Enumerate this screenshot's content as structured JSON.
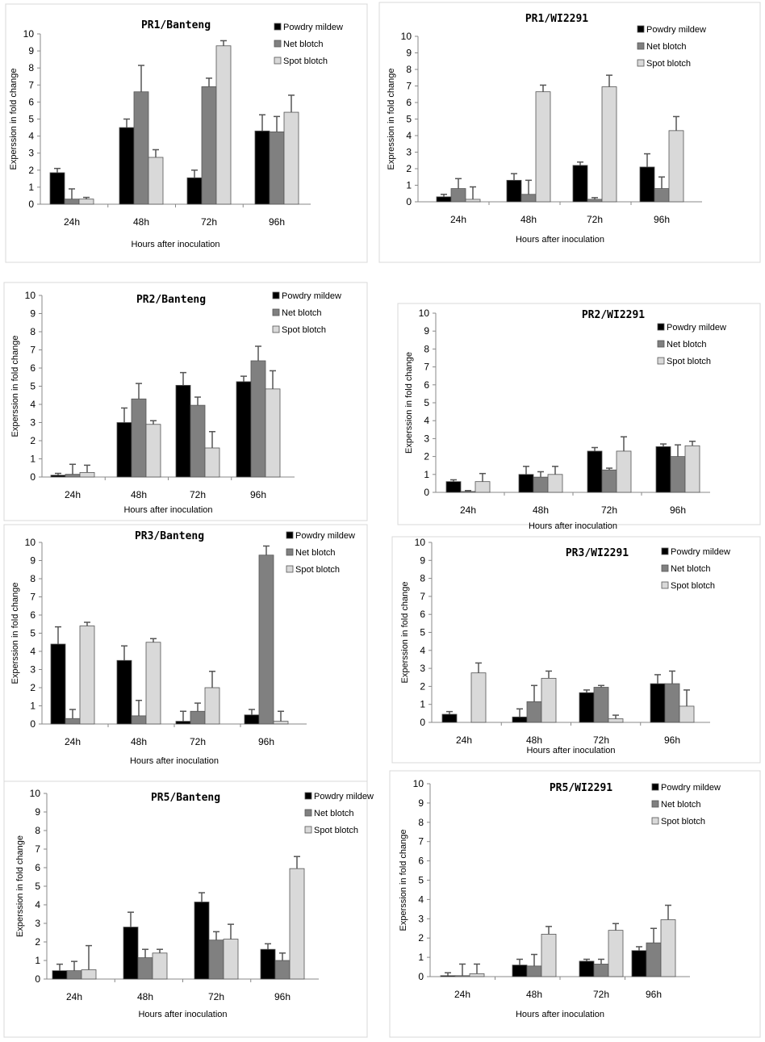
{
  "chart_data": [
    {
      "type": "bar",
      "title": "PR1/Banteng",
      "xlabel": "Hours after inoculation",
      "ylabel": "Experssion in fold change",
      "ylim": [
        0,
        10
      ],
      "yticks": [
        0,
        1,
        2,
        3,
        4,
        5,
        6,
        7,
        8,
        9,
        10
      ],
      "legend": "top-right",
      "categories": [
        "24h",
        "48h",
        "72h",
        "96h"
      ],
      "series": [
        {
          "name": "Powdry mildew",
          "color": "#000000",
          "values": [
            1.85,
            4.5,
            1.55,
            4.3
          ],
          "errors": [
            0.25,
            0.5,
            0.45,
            0.95
          ]
        },
        {
          "name": "Net blotch",
          "color": "#808080",
          "values": [
            0.3,
            6.6,
            6.9,
            4.25
          ],
          "errors": [
            0.6,
            1.55,
            0.5,
            0.9
          ]
        },
        {
          "name": "Spot blotch",
          "color": "#d9d9d9",
          "values": [
            0.3,
            2.75,
            9.3,
            5.4
          ],
          "errors": [
            0.1,
            0.45,
            0.3,
            1.0
          ]
        }
      ]
    },
    {
      "type": "bar",
      "title": "PR1/WI2291",
      "xlabel": "Hours after inoculation",
      "ylabel": "Expression in fold change",
      "ylim": [
        0,
        10
      ],
      "yticks": [
        0,
        1,
        2,
        3,
        4,
        5,
        6,
        7,
        8,
        9,
        10
      ],
      "legend": "top-right",
      "categories": [
        "24h",
        "48h",
        "72h",
        "96h"
      ],
      "series": [
        {
          "name": "Powdry mildew",
          "color": "#000000",
          "values": [
            0.3,
            1.3,
            2.2,
            2.1
          ],
          "errors": [
            0.15,
            0.4,
            0.2,
            0.8
          ]
        },
        {
          "name": "Net blotch",
          "color": "#808080",
          "values": [
            0.8,
            0.45,
            0.15,
            0.8
          ],
          "errors": [
            0.6,
            0.85,
            0.1,
            0.7
          ]
        },
        {
          "name": "Spot blotch",
          "color": "#d9d9d9",
          "values": [
            0.15,
            6.65,
            6.95,
            4.3
          ],
          "errors": [
            0.75,
            0.4,
            0.7,
            0.85
          ]
        }
      ]
    },
    {
      "type": "bar",
      "title": "PR2/Banteng",
      "xlabel": "Hours after inoculation",
      "ylabel": "Experssion in fold change",
      "ylim": [
        0,
        10
      ],
      "yticks": [
        0,
        1,
        2,
        3,
        4,
        5,
        6,
        7,
        8,
        9,
        10
      ],
      "legend": "top-right",
      "categories": [
        "24h",
        "48h",
        "72h",
        "96h"
      ],
      "series": [
        {
          "name": "Powdry mildew",
          "color": "#000000",
          "values": [
            0.1,
            3.0,
            5.05,
            5.25
          ],
          "errors": [
            0.1,
            0.8,
            0.7,
            0.3
          ]
        },
        {
          "name": "Net blotch",
          "color": "#808080",
          "values": [
            0.15,
            4.3,
            3.95,
            6.4
          ],
          "errors": [
            0.55,
            0.85,
            0.45,
            0.8
          ]
        },
        {
          "name": "Spot blotch",
          "color": "#d9d9d9",
          "values": [
            0.25,
            2.9,
            1.6,
            4.85
          ],
          "errors": [
            0.4,
            0.2,
            0.9,
            1.0
          ]
        }
      ]
    },
    {
      "type": "bar",
      "title": "PR2/WI2291",
      "xlabel": "Hours after inoculation",
      "ylabel": "Experssion in fold change",
      "ylim": [
        0,
        10
      ],
      "yticks": [
        0,
        1,
        2,
        3,
        4,
        5,
        6,
        7,
        8,
        9,
        10
      ],
      "legend": "top-right",
      "categories": [
        "24h",
        "48h",
        "72h",
        "96h"
      ],
      "series": [
        {
          "name": "Powdry mildew",
          "color": "#000000",
          "values": [
            0.6,
            1.0,
            2.3,
            2.55
          ],
          "errors": [
            0.1,
            0.45,
            0.2,
            0.15
          ]
        },
        {
          "name": "Net blotch",
          "color": "#808080",
          "values": [
            0.05,
            0.85,
            1.25,
            2.0
          ],
          "errors": [
            0.05,
            0.3,
            0.1,
            0.65
          ]
        },
        {
          "name": "Spot blotch",
          "color": "#d9d9d9",
          "values": [
            0.6,
            1.0,
            2.3,
            2.6
          ],
          "errors": [
            0.45,
            0.45,
            0.8,
            0.25
          ]
        }
      ]
    },
    {
      "type": "bar",
      "title": "PR3/Banteng",
      "xlabel": "Hours after inoculation",
      "ylabel": "Experssion in fold change",
      "ylim": [
        0,
        10
      ],
      "yticks": [
        0,
        1,
        2,
        3,
        4,
        5,
        6,
        7,
        8,
        9,
        10
      ],
      "legend": "top-right",
      "categories": [
        "24h",
        "48h",
        "72h",
        "96h"
      ],
      "series": [
        {
          "name": "Powdry mildew",
          "color": "#000000",
          "values": [
            4.4,
            3.5,
            0.15,
            0.5
          ],
          "errors": [
            0.95,
            0.8,
            0.55,
            0.3
          ]
        },
        {
          "name": "Net blotch",
          "color": "#808080",
          "values": [
            0.3,
            0.45,
            0.7,
            9.3
          ],
          "errors": [
            0.5,
            0.85,
            0.45,
            0.5
          ]
        },
        {
          "name": "Spot blotch",
          "color": "#d9d9d9",
          "values": [
            5.4,
            4.5,
            2.0,
            0.15
          ],
          "errors": [
            0.2,
            0.2,
            0.9,
            0.55
          ]
        }
      ]
    },
    {
      "type": "bar",
      "title": "PR3/WI2291",
      "xlabel": "Hours after inoculation",
      "ylabel": "Experssion in fold change",
      "ylim": [
        0,
        10
      ],
      "yticks": [
        0,
        1,
        2,
        3,
        4,
        5,
        6,
        7,
        8,
        9,
        10
      ],
      "legend": "top-right",
      "categories": [
        "24h",
        "48h",
        "72h",
        "96h"
      ],
      "series": [
        {
          "name": "Powdry mildew",
          "color": "#000000",
          "values": [
            0.45,
            0.3,
            1.65,
            2.15
          ],
          "errors": [
            0.15,
            0.45,
            0.15,
            0.5
          ]
        },
        {
          "name": "Net blotch",
          "color": "#808080",
          "values": [
            0.0,
            1.15,
            1.95,
            2.15
          ],
          "errors": [
            0.0,
            0.9,
            0.1,
            0.7
          ]
        },
        {
          "name": "Spot blotch",
          "color": "#d9d9d9",
          "values": [
            2.75,
            2.45,
            0.2,
            0.9
          ],
          "errors": [
            0.55,
            0.4,
            0.2,
            0.9
          ]
        }
      ]
    },
    {
      "type": "bar",
      "title": "PR5/Banteng",
      "xlabel": "Hours after inoculation",
      "ylabel": "Experssion in fold change",
      "ylim": [
        0,
        10
      ],
      "yticks": [
        0,
        1,
        2,
        3,
        4,
        5,
        6,
        7,
        8,
        9,
        10
      ],
      "legend": "top-right",
      "categories": [
        "24h",
        "48h",
        "72h",
        "96h"
      ],
      "series": [
        {
          "name": "Powdry mildew",
          "color": "#000000",
          "values": [
            0.45,
            2.8,
            4.15,
            1.6
          ],
          "errors": [
            0.35,
            0.8,
            0.5,
            0.3
          ]
        },
        {
          "name": "Net blotch",
          "color": "#808080",
          "values": [
            0.45,
            1.15,
            2.1,
            1.0
          ],
          "errors": [
            0.5,
            0.45,
            0.45,
            0.4
          ]
        },
        {
          "name": "Spot blotch",
          "color": "#d9d9d9",
          "values": [
            0.5,
            1.4,
            2.15,
            5.95
          ],
          "errors": [
            1.3,
            0.2,
            0.8,
            0.65
          ]
        }
      ]
    },
    {
      "type": "bar",
      "title": "PR5/WI2291",
      "xlabel": "Hours after inoculation",
      "ylabel": "Experssion in fold change",
      "ylim": [
        0,
        10
      ],
      "yticks": [
        0,
        1,
        2,
        3,
        4,
        5,
        6,
        7,
        8,
        9,
        10
      ],
      "legend": "top-right",
      "categories": [
        "24h",
        "48h",
        "72h",
        "96h"
      ],
      "series": [
        {
          "name": "Powdry mildew",
          "color": "#000000",
          "values": [
            0.05,
            0.6,
            0.8,
            1.35
          ],
          "errors": [
            0.15,
            0.3,
            0.1,
            0.2
          ]
        },
        {
          "name": "Net blotch",
          "color": "#808080",
          "values": [
            0.05,
            0.55,
            0.65,
            1.75
          ],
          "errors": [
            0.6,
            0.6,
            0.25,
            0.75
          ]
        },
        {
          "name": "Spot blotch",
          "color": "#d9d9d9",
          "values": [
            0.15,
            2.2,
            2.4,
            2.95
          ],
          "errors": [
            0.5,
            0.4,
            0.35,
            0.75
          ]
        }
      ]
    }
  ]
}
